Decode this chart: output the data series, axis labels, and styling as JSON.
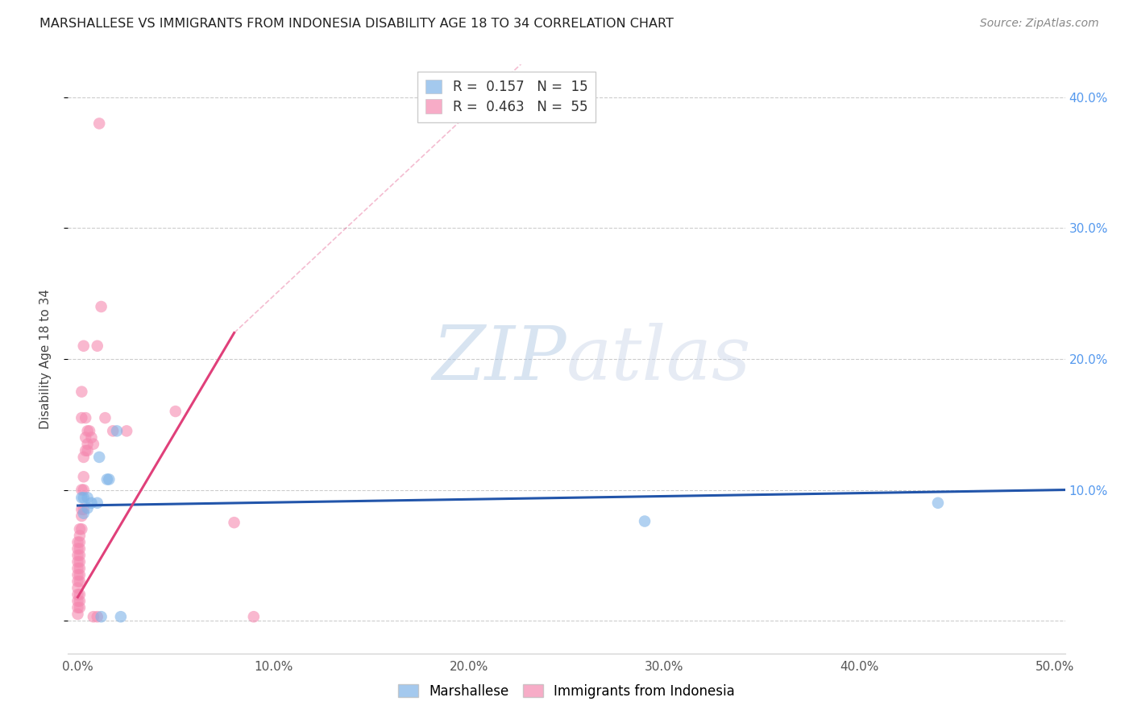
{
  "title": "MARSHALLESE VS IMMIGRANTS FROM INDONESIA DISABILITY AGE 18 TO 34 CORRELATION CHART",
  "source": "Source: ZipAtlas.com",
  "ylabel": "Disability Age 18 to 34",
  "xlim": [
    -0.005,
    0.505
  ],
  "ylim": [
    -0.025,
    0.425
  ],
  "xticks": [
    0.0,
    0.1,
    0.2,
    0.3,
    0.4,
    0.5
  ],
  "yticks": [
    0.0,
    0.1,
    0.2,
    0.3,
    0.4
  ],
  "ytick_labels_right": [
    "",
    "10.0%",
    "20.0%",
    "30.0%",
    "40.0%"
  ],
  "xtick_labels": [
    "0.0%",
    "10.0%",
    "20.0%",
    "30.0%",
    "40.0%",
    "50.0%"
  ],
  "legend_blue_R": "0.157",
  "legend_blue_N": "15",
  "legend_pink_R": "0.463",
  "legend_pink_N": "55",
  "legend_label_blue": "Marshallese",
  "legend_label_pink": "Immigrants from Indonesia",
  "watermark_zip": "ZIP",
  "watermark_atlas": "atlas",
  "blue_color": "#7EB3E8",
  "pink_color": "#F589B0",
  "blue_line_color": "#2255AA",
  "pink_line_color": "#E0407A",
  "blue_scatter": [
    [
      0.002,
      0.094
    ],
    [
      0.003,
      0.094
    ],
    [
      0.003,
      0.082
    ],
    [
      0.005,
      0.086
    ],
    [
      0.005,
      0.094
    ],
    [
      0.007,
      0.09
    ],
    [
      0.01,
      0.09
    ],
    [
      0.011,
      0.125
    ],
    [
      0.012,
      0.003
    ],
    [
      0.015,
      0.108
    ],
    [
      0.016,
      0.108
    ],
    [
      0.02,
      0.145
    ],
    [
      0.022,
      0.003
    ],
    [
      0.29,
      0.076
    ],
    [
      0.44,
      0.09
    ]
  ],
  "pink_scatter": [
    [
      0.0,
      0.06
    ],
    [
      0.0,
      0.055
    ],
    [
      0.0,
      0.05
    ],
    [
      0.0,
      0.045
    ],
    [
      0.0,
      0.04
    ],
    [
      0.0,
      0.035
    ],
    [
      0.0,
      0.03
    ],
    [
      0.0,
      0.025
    ],
    [
      0.0,
      0.02
    ],
    [
      0.0,
      0.015
    ],
    [
      0.0,
      0.01
    ],
    [
      0.0,
      0.005
    ],
    [
      0.001,
      0.07
    ],
    [
      0.001,
      0.065
    ],
    [
      0.001,
      0.06
    ],
    [
      0.001,
      0.055
    ],
    [
      0.001,
      0.05
    ],
    [
      0.001,
      0.045
    ],
    [
      0.001,
      0.04
    ],
    [
      0.001,
      0.035
    ],
    [
      0.001,
      0.03
    ],
    [
      0.001,
      0.02
    ],
    [
      0.001,
      0.015
    ],
    [
      0.001,
      0.01
    ],
    [
      0.002,
      0.175
    ],
    [
      0.002,
      0.155
    ],
    [
      0.002,
      0.1
    ],
    [
      0.002,
      0.085
    ],
    [
      0.002,
      0.08
    ],
    [
      0.002,
      0.07
    ],
    [
      0.003,
      0.21
    ],
    [
      0.003,
      0.125
    ],
    [
      0.003,
      0.11
    ],
    [
      0.003,
      0.1
    ],
    [
      0.003,
      0.085
    ],
    [
      0.004,
      0.155
    ],
    [
      0.004,
      0.14
    ],
    [
      0.004,
      0.13
    ],
    [
      0.005,
      0.145
    ],
    [
      0.005,
      0.135
    ],
    [
      0.005,
      0.13
    ],
    [
      0.006,
      0.145
    ],
    [
      0.007,
      0.14
    ],
    [
      0.008,
      0.135
    ],
    [
      0.008,
      0.003
    ],
    [
      0.01,
      0.21
    ],
    [
      0.01,
      0.003
    ],
    [
      0.011,
      0.38
    ],
    [
      0.012,
      0.24
    ],
    [
      0.014,
      0.155
    ],
    [
      0.018,
      0.145
    ],
    [
      0.025,
      0.145
    ],
    [
      0.05,
      0.16
    ],
    [
      0.08,
      0.075
    ],
    [
      0.09,
      0.003
    ]
  ],
  "blue_trendline_solid": [
    [
      0.0,
      0.088
    ],
    [
      0.505,
      0.1
    ]
  ],
  "pink_trendline_solid": [
    [
      0.0,
      0.018
    ],
    [
      0.08,
      0.22
    ]
  ],
  "pink_trendline_dash": [
    [
      0.08,
      0.22
    ],
    [
      0.48,
      0.78
    ]
  ]
}
